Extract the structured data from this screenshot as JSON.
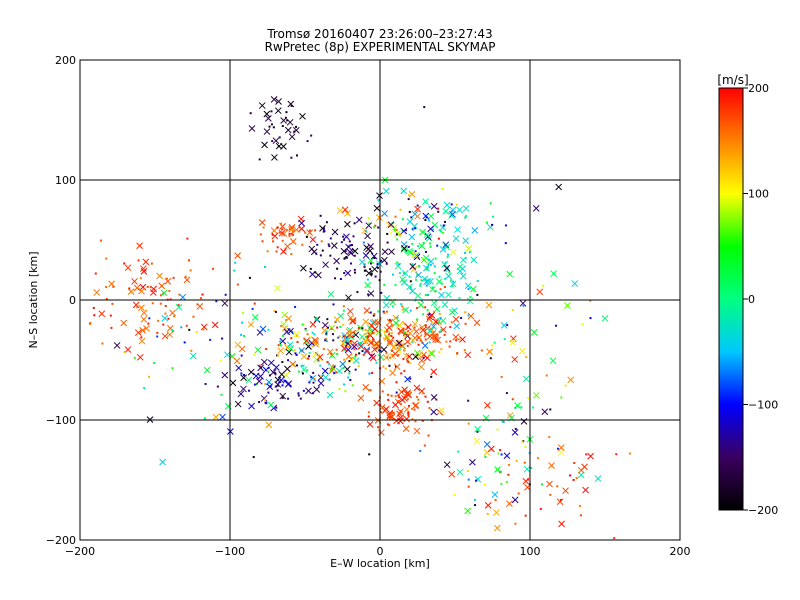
{
  "chart_data": {
    "type": "scatter",
    "title": "Tromsø 20160407 23:26:00–23:27:43",
    "subtitle": "RwPretec (8p) EXPERIMENTAL SKYMAP",
    "xlabel": "E–W location [km]",
    "ylabel": "N–S location [km]",
    "xlim": [
      -200,
      200
    ],
    "ylim": [
      -200,
      200
    ],
    "xticks": [
      -200,
      -100,
      0,
      100,
      200
    ],
    "yticks": [
      -200,
      -100,
      0,
      100,
      200
    ],
    "xtick_labels": [
      "−200",
      "−100",
      "0",
      "100",
      "200"
    ],
    "ytick_labels": [
      "−200",
      "−100",
      "0",
      "100",
      "200"
    ],
    "grid": true,
    "colorbar": {
      "label": "[m/s]",
      "range": [
        -200,
        200
      ],
      "ticks": [
        200,
        100,
        0,
        -100,
        -200
      ],
      "tick_labels": [
        "200",
        "100",
        "0",
        "−100",
        "−200"
      ],
      "colormap": [
        "#000000",
        "#3a0060",
        "#0000ff",
        "#00c8ff",
        "#00ff80",
        "#00ff00",
        "#ffff00",
        "#ff8000",
        "#ff0000"
      ]
    },
    "clusters": [
      {
        "x": -40,
        "y": -40,
        "sx": 30,
        "sy": 18,
        "n": 220,
        "vmin": -200,
        "vmax": 200
      },
      {
        "x": 10,
        "y": -30,
        "sx": 25,
        "sy": 12,
        "n": 200,
        "vmin": 120,
        "vmax": 200
      },
      {
        "x": 30,
        "y": 20,
        "sx": 18,
        "sy": 25,
        "n": 150,
        "vmin": -60,
        "vmax": 40
      },
      {
        "x": -150,
        "y": 0,
        "sx": 22,
        "sy": 18,
        "n": 90,
        "vmin": 150,
        "vmax": 200
      },
      {
        "x": -65,
        "y": 140,
        "sx": 8,
        "sy": 15,
        "n": 40,
        "vmin": -200,
        "vmax": -150
      },
      {
        "x": 15,
        "y": -90,
        "sx": 15,
        "sy": 12,
        "n": 80,
        "vmin": 150,
        "vmax": 200
      },
      {
        "x": 80,
        "y": -130,
        "sx": 22,
        "sy": 28,
        "n": 70,
        "vmin": -200,
        "vmax": 200
      },
      {
        "x": 20,
        "y": 65,
        "sx": 22,
        "sy": 14,
        "n": 90,
        "vmin": -200,
        "vmax": 200
      },
      {
        "x": -60,
        "y": 55,
        "sx": 10,
        "sy": 8,
        "n": 45,
        "vmin": 150,
        "vmax": 200
      },
      {
        "x": -15,
        "y": 35,
        "sx": 18,
        "sy": 15,
        "n": 100,
        "vmin": -200,
        "vmax": -120
      },
      {
        "x": -70,
        "y": -70,
        "sx": 15,
        "sy": 10,
        "n": 60,
        "vmin": -200,
        "vmax": -90
      },
      {
        "x": 120,
        "y": -150,
        "sx": 20,
        "sy": 20,
        "n": 35,
        "vmin": 150,
        "vmax": 200
      },
      {
        "x": 70,
        "y": -30,
        "sx": 40,
        "sy": 60,
        "n": 80,
        "vmin": -200,
        "vmax": 200
      },
      {
        "x": -110,
        "y": -40,
        "sx": 30,
        "sy": 40,
        "n": 60,
        "vmin": -200,
        "vmax": 200
      }
    ]
  }
}
